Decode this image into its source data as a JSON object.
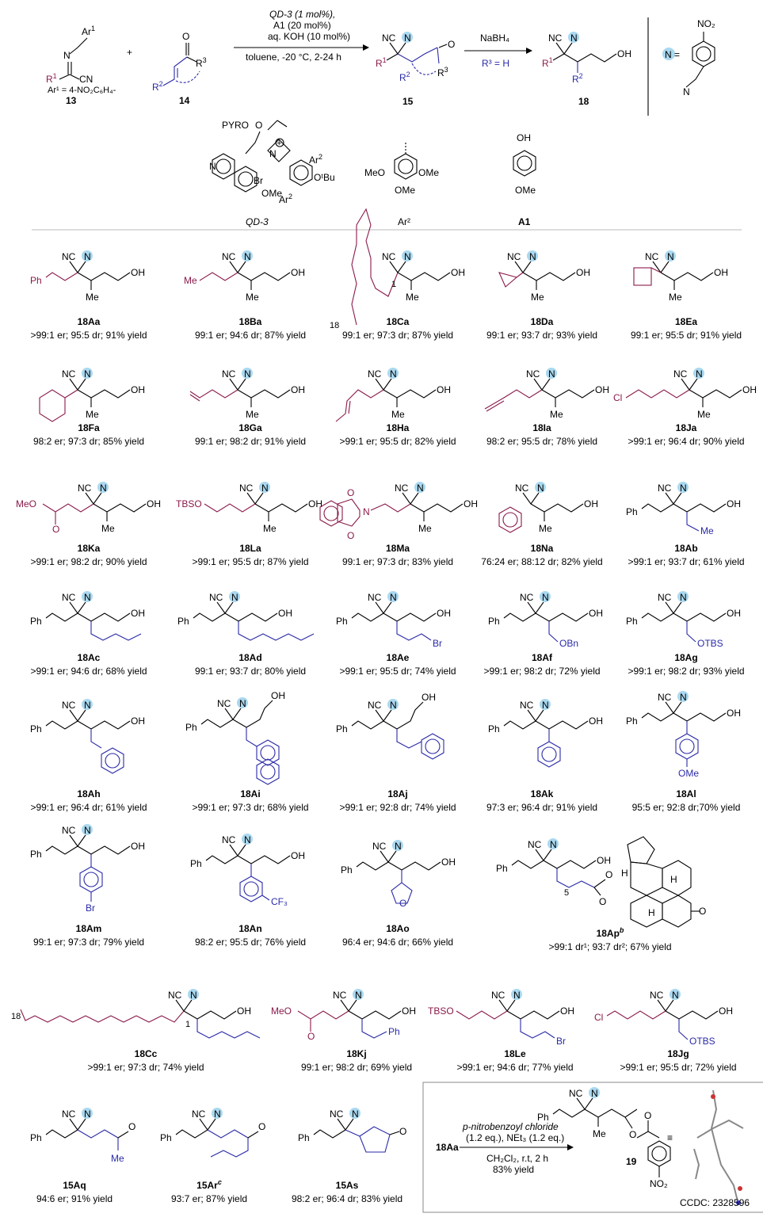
{
  "colors": {
    "r_group": "#8a1a4a",
    "enone_part": "#2a2aa8",
    "n_badge": "#a9d8ef"
  },
  "header": {
    "sm_label": "13",
    "sm_ar": "Ar",
    "sm_ar_def": "Ar¹ = 4-NO₂C₆H₄-",
    "enone_label": "14",
    "cond1": "QD-3  (1 mol%),",
    "cond2": "A1 (20 mol%)",
    "cond3": "aq. KOH (10 mol%)",
    "cond4": "toluene, -20 °C, 2-24 h",
    "p15_label": "15",
    "red_top": "NaBH₄",
    "red_bot": "R³ = H",
    "p18_label": "18",
    "n_def": "N  =",
    "no2": "NO₂",
    "cat_label": "QD-3",
    "ar2_label": "Ar²",
    "a1_label": "A1",
    "pyro": "PYRO",
    "br": "Br",
    "ome": "OMe",
    "otbu": "OᵗBu",
    "oh": "OH"
  },
  "rows": [
    [
      {
        "id": "18Aa",
        "txt": ">99:1 er; 95:5 dr; 91% yield"
      },
      {
        "id": "18Ba",
        "txt": "99:1 er; 94:6 dr; 87% yield"
      },
      {
        "id": "18Ca",
        "txt": "99:1 er; 97:3 dr; 87% yield"
      },
      {
        "id": "18Da",
        "txt": "99:1 er; 93:7 dr; 93% yield"
      },
      {
        "id": "18Ea",
        "txt": "99:1 er; 95:5 dr; 91% yield"
      }
    ],
    [
      {
        "id": "18Fa",
        "txt": "98:2 er; 97:3 dr; 85% yield"
      },
      {
        "id": "18Ga",
        "txt": "99:1 er; 98:2 dr; 91% yield"
      },
      {
        "id": "18Ha",
        "txt": ">99:1 er; 95:5 dr; 82% yield"
      },
      {
        "id": "18Ia",
        "txt": "98:2 er; 95:5 dr; 78% yield"
      },
      {
        "id": "18Ja",
        "txt": ">99:1 er; 96:4 dr; 90% yield"
      }
    ],
    [
      {
        "id": "18Ka",
        "txt": ">99:1 er; 98:2 dr; 90% yield"
      },
      {
        "id": "18La",
        "txt": ">99:1 er; 95:5 dr; 87% yield"
      },
      {
        "id": "18Ma",
        "txt": "99:1 er; 97:3 dr; 83% yield"
      },
      {
        "id": "18Na",
        "txt": "76:24 er; 88:12 dr; 82% yield"
      },
      {
        "id": "18Ab",
        "txt": ">99:1 er; 93:7 dr; 61% yield"
      }
    ],
    [
      {
        "id": "18Ac",
        "txt": ">99:1 er; 94:6 dr; 68% yield"
      },
      {
        "id": "18Ad",
        "txt": "99:1 er; 93:7 dr;  80% yield"
      },
      {
        "id": "18Ae",
        "txt": ">99:1 er; 95:5 dr; 74% yield"
      },
      {
        "id": "18Af",
        "txt": ">99:1 er; 98:2 dr; 72% yield"
      },
      {
        "id": "18Ag",
        "txt": ">99:1 er; 98:2 dr; 93% yield"
      }
    ],
    [
      {
        "id": "18Ah",
        "txt": ">99:1 er; 96:4 dr; 61% yield"
      },
      {
        "id": "18Ai",
        "txt": ">99:1 er; 97:3 dr; 68% yield"
      },
      {
        "id": "18Aj",
        "txt": ">99:1 er; 92:8 dr; 74% yield"
      },
      {
        "id": "18Ak",
        "txt": "97:3 er; 96:4 dr; 91% yield"
      },
      {
        "id": "18Al",
        "txt": "95:5 er; 92:8 dr;70% yield"
      }
    ],
    [
      {
        "id": "18Am",
        "txt": "99:1 er; 97:3 dr; 79% yield"
      },
      {
        "id": "18An",
        "txt": "98:2 er; 95:5 dr; 76% yield"
      },
      {
        "id": "18Ao",
        "txt": "96:4 er; 94:6 dr; 66% yield"
      },
      {
        "id": "18Ap",
        "sup": "b",
        "txt": ">99:1 dr¹; 93:7 dr²; 67% yield"
      }
    ],
    [
      {
        "id": "18Cc",
        "txt": ">99:1 er; 97:3 dr; 74% yield"
      },
      {
        "id": "18Kj",
        "txt": "99:1 er; 98:2 dr; 69% yield"
      },
      {
        "id": "18Le",
        "txt": ">99:1 er; 94:6 dr; 77% yield"
      },
      {
        "id": "18Jg",
        "txt": ">99:1 er; 95:5 dr; 72% yield"
      }
    ],
    [
      {
        "id": "15Aq",
        "txt": "94:6 er; 91% yield"
      },
      {
        "id": "15Ar",
        "sup": "c",
        "txt": "93:7 er; 87% yield"
      },
      {
        "id": "15As",
        "txt": "98:2 er; 96:4 dr; 83% yield"
      }
    ]
  ],
  "inset": {
    "reactant": "18Aa",
    "reagent": "p-nitrobenzoyl chloride",
    "eq": "(1.2 eq.), NEt₃ (1.2 eq.)",
    "cond": "CH₂Cl₂, r.t, 2 h",
    "yield": "83% yield",
    "product": "19",
    "ccdc": "CCDC: 2328596"
  },
  "fragments": {
    "ph": "Ph",
    "me": "Me",
    "oh": "OH",
    "nc": "NC",
    "n": "N",
    "cl": "Cl",
    "br": "Br",
    "meo": "MeO",
    "tbso": "TBSO",
    "obn": "OBn",
    "otbs": "OTBS",
    "ome": "OMe",
    "cf3": "CF₃",
    "o": "O",
    "eighteen": "18",
    "one": "1",
    "five": "5",
    "r1": "R¹",
    "r2": "R²",
    "r3": "R³",
    "no2": "NO₂",
    "ar1": "Ar¹"
  }
}
